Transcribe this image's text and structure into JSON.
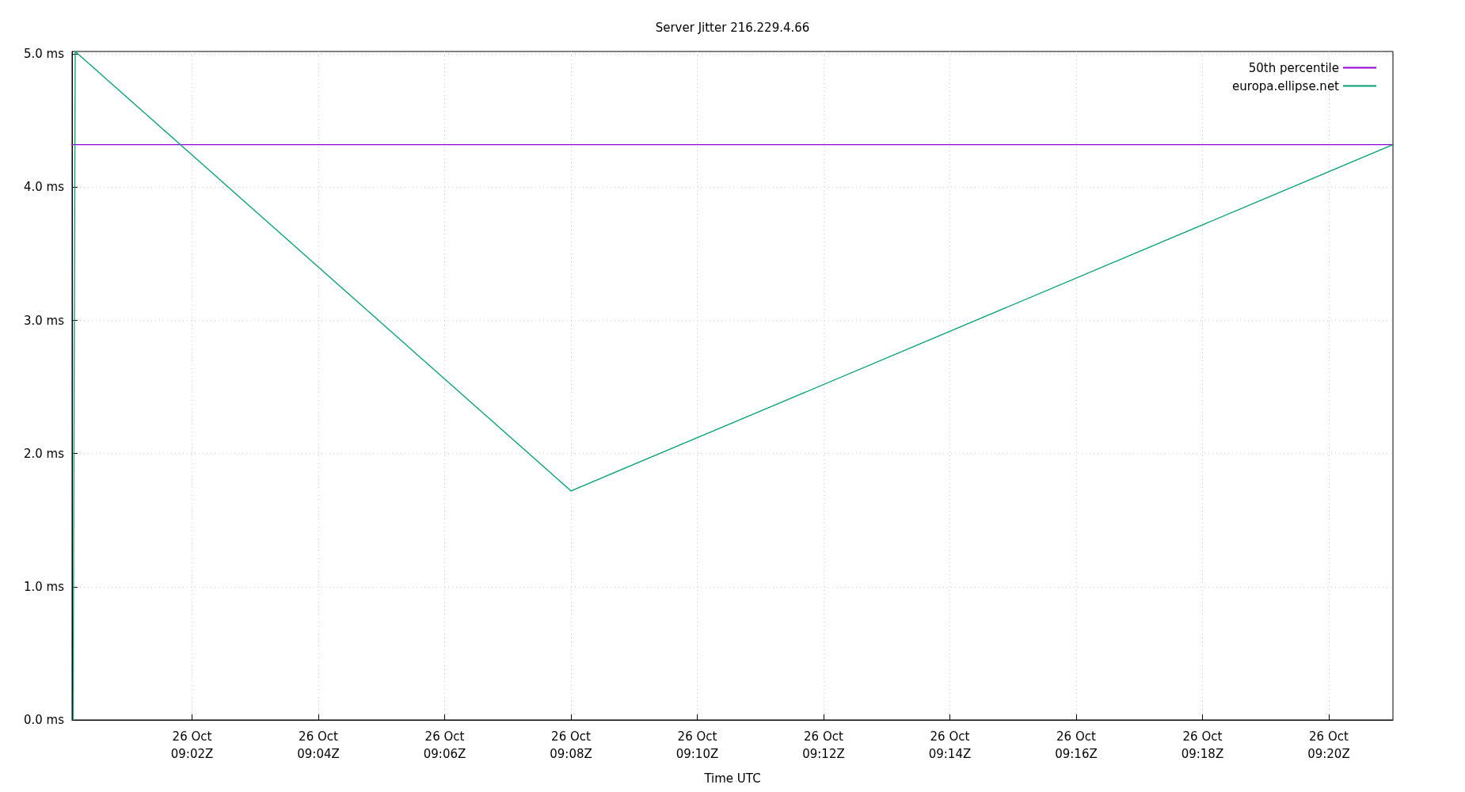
{
  "chart_data": {
    "type": "line",
    "title": "Server Jitter 216.229.4.66",
    "xlabel": "Time UTC",
    "xlim": [
      "--10-26T09:00:06",
      "--10-26T09:21:01"
    ],
    "xticks": [
      {
        "value": "--10-26T09:02",
        "label": "26 Oct\n09:02Z"
      },
      {
        "value": "--10-26T09:04",
        "label": "26 Oct\n09:04Z"
      },
      {
        "value": "--10-26T09:06",
        "label": "26 Oct\n09:06Z"
      },
      {
        "value": "--10-26T09:08",
        "label": "26 Oct\n09:08Z"
      },
      {
        "value": "--10-26T09:10",
        "label": "26 Oct\n09:10Z"
      },
      {
        "value": "--10-26T09:12",
        "label": "26 Oct\n09:12Z"
      },
      {
        "value": "--10-26T09:14",
        "label": "26 Oct\n09:14Z"
      },
      {
        "value": "--10-26T09:16",
        "label": "26 Oct\n09:16Z"
      },
      {
        "value": "--10-26T09:18",
        "label": "26 Oct\n09:18Z"
      },
      {
        "value": "--10-26T09:20",
        "label": "26 Oct\n09:20Z"
      }
    ],
    "ylim": [
      0,
      5.02
    ],
    "yticks": [
      {
        "value": 0,
        "label": "0.0 ms"
      },
      {
        "value": 1,
        "label": "1.0 ms"
      },
      {
        "value": 2,
        "label": "2.0 ms"
      },
      {
        "value": 3,
        "label": "3.0 ms"
      },
      {
        "value": 4,
        "label": "4.0 ms"
      },
      {
        "value": 5,
        "label": "5.0 ms"
      }
    ],
    "series": [
      {
        "name": "50th percentile",
        "color": "#9400d3",
        "x": [
          "--10-26T09:00:06",
          "--10-26T09:21:01"
        ],
        "values": [
          4.32,
          4.32
        ]
      },
      {
        "name": "europa.ellipse.net",
        "color": "#009e73",
        "x": [
          "--10-26T09:00:07",
          "--10-26T09:00:09",
          "--10-26T09:08:00",
          "--10-26T09:21:01"
        ],
        "values": [
          0,
          5.02,
          1.72,
          4.32
        ]
      }
    ],
    "grid": true,
    "legend": "top right",
    "marker": "none",
    "line_style": "solid"
  }
}
